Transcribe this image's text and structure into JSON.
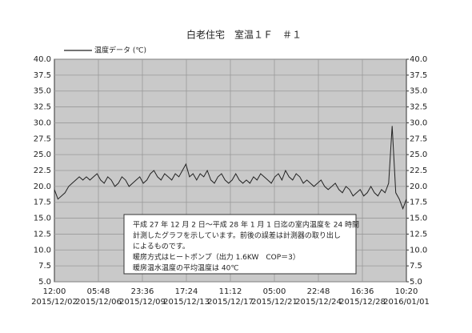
{
  "chart_data": {
    "type": "line",
    "title": "白老住宅　室温１Ｆ　＃１",
    "x_labels": [
      {
        "time": "12:00",
        "date": "2015/12/02"
      },
      {
        "time": "05:48",
        "date": "2015/12/06"
      },
      {
        "time": "23:36",
        "date": "2015/12/09"
      },
      {
        "time": "17:24",
        "date": "2015/12/13"
      },
      {
        "time": "11:12",
        "date": "2015/12/17"
      },
      {
        "time": "05:00",
        "date": "2015/12/21"
      },
      {
        "time": "22:48",
        "date": "2015/12/24"
      },
      {
        "time": "16:36",
        "date": "2015/12/28"
      },
      {
        "time": "10:20",
        "date": "2016/01/01"
      }
    ],
    "series": [
      {
        "name": "温度データ (℃)",
        "color": "#222222",
        "values": [
          19.5,
          18,
          18.5,
          19,
          20,
          20.5,
          21,
          21.5,
          21,
          21.5,
          21,
          21.5,
          22,
          21,
          20.5,
          21.5,
          21,
          20,
          20.5,
          21.5,
          21,
          20,
          20.5,
          21,
          21.5,
          20.5,
          21,
          22,
          22.5,
          21.5,
          21,
          22,
          21.5,
          21,
          22,
          21.5,
          22.5,
          23.5,
          21.5,
          22,
          21,
          22,
          21.5,
          22.5,
          21,
          20.5,
          21.5,
          22,
          21,
          20.5,
          21,
          22,
          21,
          20.5,
          21,
          20.5,
          21.5,
          21,
          22,
          21.5,
          21,
          20.5,
          21.5,
          22,
          21,
          22.5,
          21.5,
          21,
          22,
          21.5,
          20.5,
          21,
          20.5,
          20,
          20.5,
          21,
          20,
          19.5,
          20,
          20.5,
          19.5,
          19,
          20,
          19.5,
          18.5,
          19,
          19.5,
          18.5,
          19,
          20,
          19,
          18.5,
          19.5,
          19,
          20.5,
          29.5,
          19,
          18,
          16.5,
          18
        ]
      }
    ],
    "ylim": [
      5,
      40
    ],
    "yticks": [
      {
        "value": 5,
        "label": "5.0"
      },
      {
        "value": 7.5,
        "label": "7.5"
      },
      {
        "value": 10,
        "label": "10.0"
      },
      {
        "value": 12.5,
        "label": "12.5"
      },
      {
        "value": 15,
        "label": "15.0"
      },
      {
        "value": 17.5,
        "label": "17.5"
      },
      {
        "value": 20,
        "label": "20.0"
      },
      {
        "value": 22.5,
        "label": "22.5"
      },
      {
        "value": 25,
        "label": "25.0"
      },
      {
        "value": 27.5,
        "label": "27.5"
      },
      {
        "value": 30,
        "label": "30.0"
      },
      {
        "value": 32.5,
        "label": "32.5"
      },
      {
        "value": 35,
        "label": "35.0"
      },
      {
        "value": 37.5,
        "label": "37.5"
      },
      {
        "value": 40,
        "label": "40.0"
      }
    ],
    "y2lim": [
      5,
      40
    ],
    "y2ticks": [
      {
        "value": 5,
        "label": "5.0"
      },
      {
        "value": 7.5,
        "label": "7.5"
      },
      {
        "value": 10,
        "label": "10.0"
      },
      {
        "value": 12.5,
        "label": "12.5"
      },
      {
        "value": 15,
        "label": "15.0"
      },
      {
        "value": 17.5,
        "label": "17.5"
      },
      {
        "value": 20,
        "label": "20.0"
      },
      {
        "value": 22.5,
        "label": "22.5"
      },
      {
        "value": 25,
        "label": "25.0"
      },
      {
        "value": 27.5,
        "label": "27.5"
      },
      {
        "value": 30,
        "label": "30.0"
      },
      {
        "value": 32.5,
        "label": "32.5"
      },
      {
        "value": 35,
        "label": "35.0"
      },
      {
        "value": 37.5,
        "label": "37.5"
      },
      {
        "value": 40,
        "label": "40.0"
      }
    ],
    "grid": true,
    "annotation": [
      "平成 27 年 12 月 2 日～平成 28 年 1 月 1 日迄の室内温度を 24 時間",
      "計測したグラフを示しています。前後の誤差は計測器の取り出し",
      "によるものです。",
      "暖房方式はヒートポンプ（出力 1.6KW　COP＝3）",
      "暖房温水温度の平均温度は 40℃"
    ]
  }
}
